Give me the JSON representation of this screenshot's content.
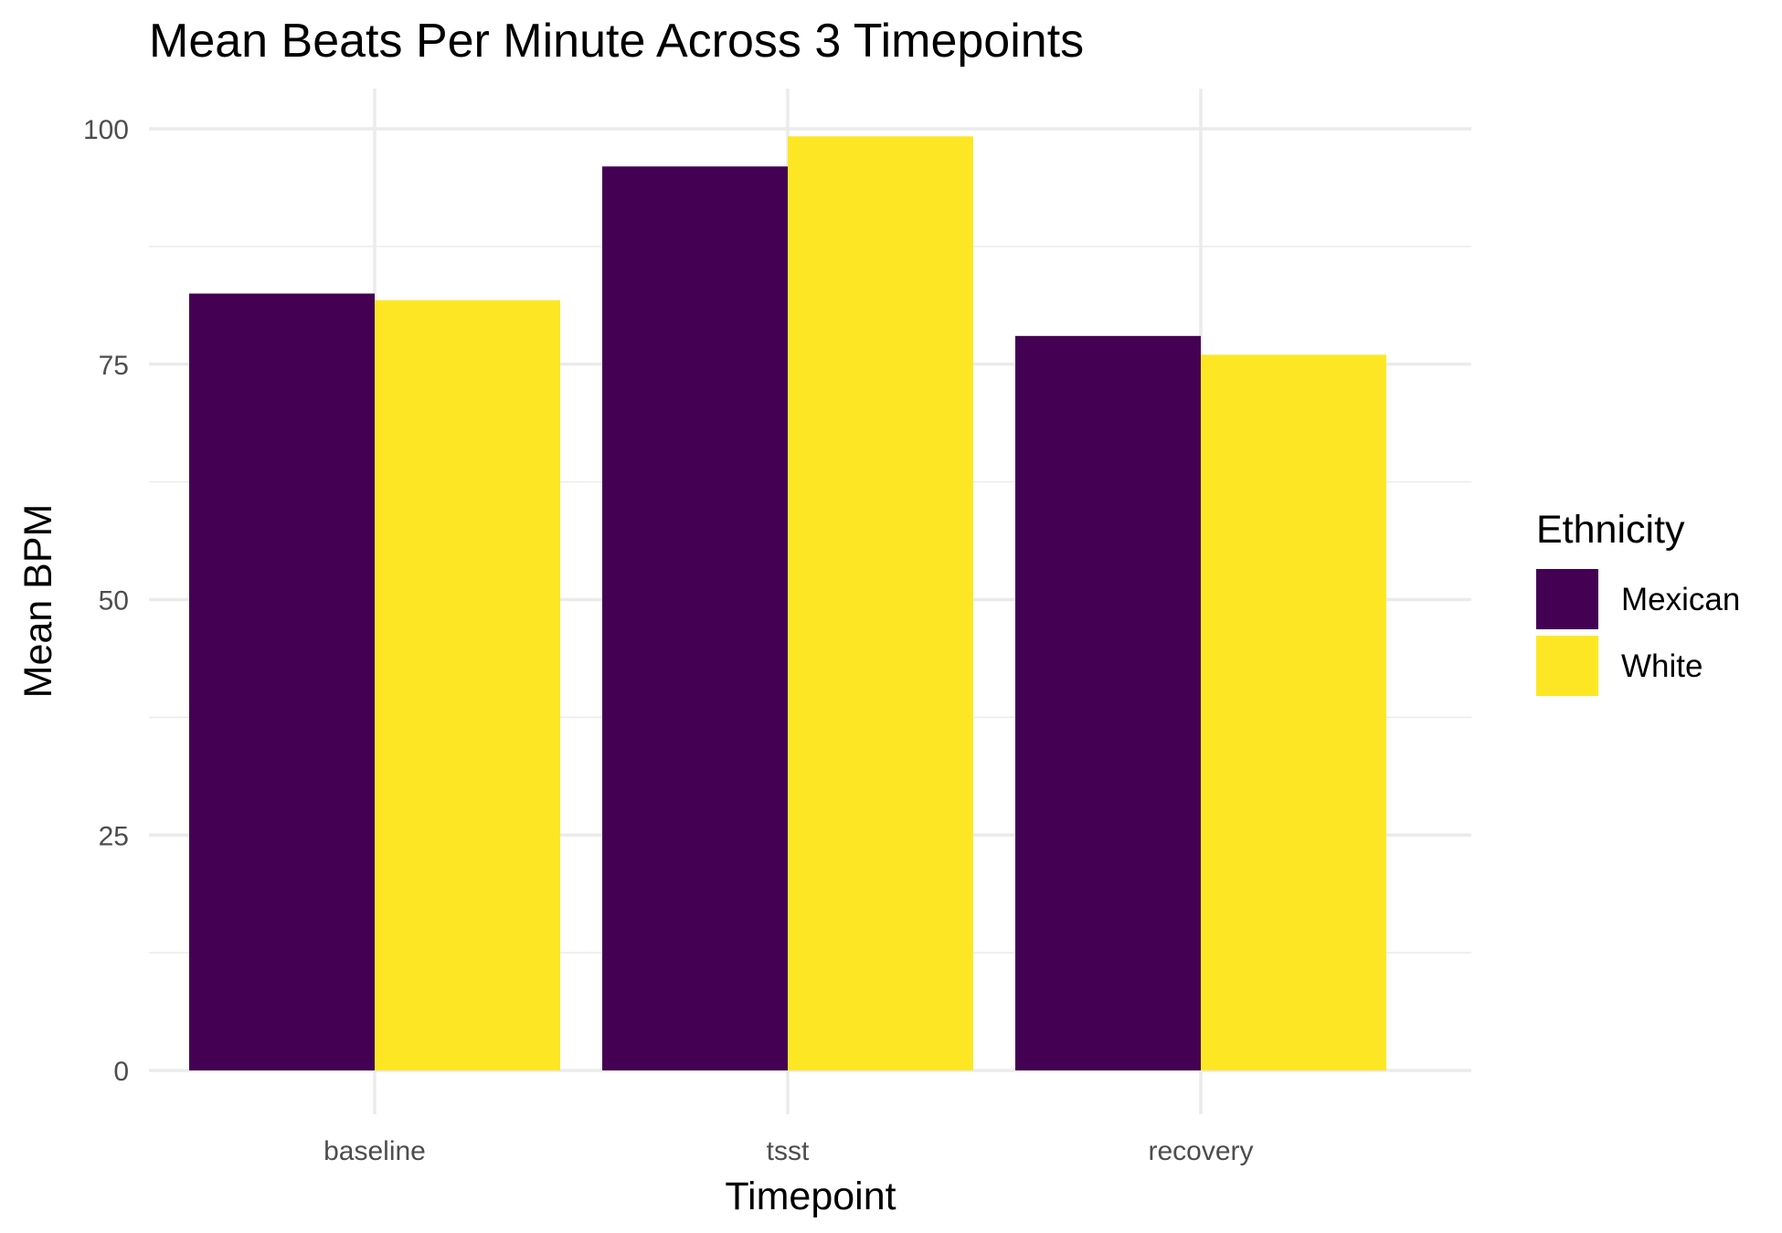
{
  "chart_data": {
    "type": "bar",
    "title": "Mean Beats Per Minute Across 3 Timepoints",
    "xlabel": "Timepoint",
    "ylabel": "Mean BPM",
    "categories": [
      "baseline",
      "tsst",
      "recovery"
    ],
    "series": [
      {
        "name": "Mexican",
        "color": "#440154",
        "values": [
          82.5,
          96,
          78
        ]
      },
      {
        "name": "White",
        "color": "#FDE725",
        "values": [
          81.8,
          99.2,
          76
        ]
      }
    ],
    "ylim": [
      0,
      100
    ],
    "yticks": [
      0,
      25,
      50,
      75,
      100
    ],
    "yticks_labels": [
      "0",
      "25",
      "50",
      "75",
      "100"
    ],
    "grid": true,
    "legend": {
      "title": "Ethnicity",
      "position": "right"
    }
  }
}
